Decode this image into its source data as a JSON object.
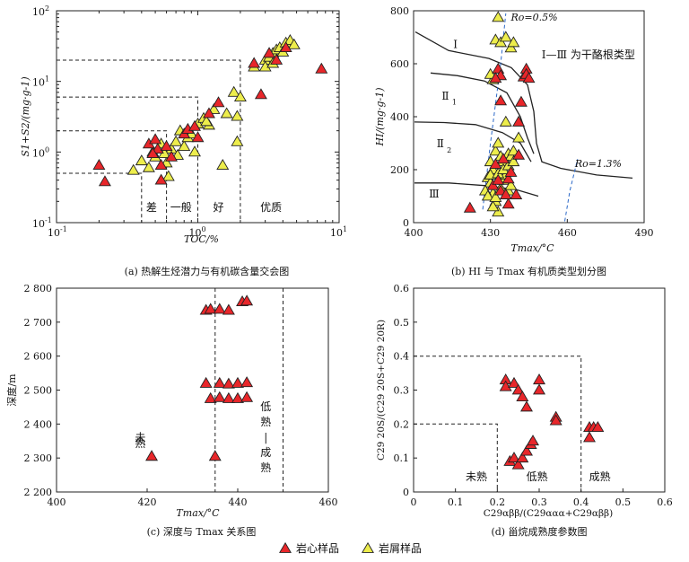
{
  "colors": {
    "core": "#e8262a",
    "cutting": "#eded4c",
    "marker_stroke": "#222222",
    "ro_line": "#2a68c8"
  },
  "legend": {
    "core_label": "岩心样品",
    "cutting_label": "岩屑样品"
  },
  "chart_data": [
    {
      "id": "a",
      "type": "scatter",
      "xscale": "log",
      "yscale": "log",
      "caption": "(a) 热解生烃潜力与有机碳含量交会图",
      "xlabel": "TOC/%",
      "ylabel": "S1+S2/(mg·g-1)",
      "xlim": [
        0.1,
        10
      ],
      "ylim": [
        0.1,
        100
      ],
      "xtick_labels": [
        "10^-1",
        "10^0",
        "10^1"
      ],
      "ytick_labels": [
        "10^-1",
        "10^0",
        "10^1",
        "10^2"
      ],
      "zones": [
        "差",
        "一般",
        "好",
        "优质"
      ],
      "series": [
        {
          "name": "岩心样品",
          "points": [
            [
              0.2,
              0.65
            ],
            [
              0.22,
              0.38
            ],
            [
              0.45,
              1.3
            ],
            [
              0.5,
              1.5
            ],
            [
              0.52,
              1.1
            ],
            [
              0.55,
              0.4
            ],
            [
              0.6,
              1.2
            ],
            [
              0.65,
              0.85
            ],
            [
              0.55,
              0.65
            ],
            [
              0.8,
              1.8
            ],
            [
              0.85,
              2.1
            ],
            [
              1.0,
              1.6
            ],
            [
              1.2,
              3.5
            ],
            [
              1.4,
              5.0
            ],
            [
              2.5,
              18.0
            ],
            [
              2.8,
              6.5
            ],
            [
              3.2,
              25.0
            ],
            [
              3.6,
              20.0
            ],
            [
              4.2,
              30.0
            ],
            [
              7.5,
              15.0
            ],
            [
              0.95,
              2.3
            ],
            [
              0.48,
              0.95
            ]
          ]
        },
        {
          "name": "岩屑样品",
          "points": [
            [
              0.35,
              0.55
            ],
            [
              0.4,
              0.75
            ],
            [
              0.45,
              0.6
            ],
            [
              0.48,
              1.0
            ],
            [
              0.5,
              0.85
            ],
            [
              0.55,
              1.3
            ],
            [
              0.6,
              0.7
            ],
            [
              0.62,
              0.45
            ],
            [
              0.65,
              1.1
            ],
            [
              0.7,
              1.4
            ],
            [
              0.72,
              0.9
            ],
            [
              0.8,
              1.2
            ],
            [
              0.85,
              1.6
            ],
            [
              0.9,
              1.8
            ],
            [
              0.95,
              1.0
            ],
            [
              1.0,
              2.5
            ],
            [
              1.1,
              3.0
            ],
            [
              1.2,
              2.4
            ],
            [
              1.3,
              4.0
            ],
            [
              1.5,
              0.65
            ],
            [
              1.6,
              3.5
            ],
            [
              1.8,
              7.0
            ],
            [
              1.9,
              3.2
            ],
            [
              2.0,
              6.0
            ],
            [
              1.9,
              1.4
            ],
            [
              2.5,
              16.0
            ],
            [
              3.0,
              20.0
            ],
            [
              3.2,
              22.0
            ],
            [
              3.4,
              25.0
            ],
            [
              3.6,
              28.0
            ],
            [
              3.8,
              30.0
            ],
            [
              4.2,
              35.0
            ],
            [
              4.5,
              38.0
            ],
            [
              4.8,
              33.0
            ],
            [
              3.0,
              16.0
            ],
            [
              4.0,
              26.0
            ],
            [
              3.4,
              18.0
            ],
            [
              0.75,
              2.0
            ],
            [
              1.15,
              2.7
            ],
            [
              0.58,
              0.95
            ]
          ]
        }
      ]
    },
    {
      "id": "b",
      "type": "scatter",
      "caption": "(b) HI 与 Tmax 有机质类型划分图",
      "xlabel": "Tmax/°C",
      "ylabel": "HI/(mg·g-1)",
      "xlim": [
        400,
        490
      ],
      "ylim": [
        0,
        800
      ],
      "xticks": [
        400,
        430,
        460,
        490
      ],
      "yticks": [
        0,
        200,
        400,
        600,
        800
      ],
      "annotations": {
        "type1": "Ⅰ",
        "type2_1": "Ⅱ",
        "type2_1_sub": "1",
        "type2_2": "Ⅱ",
        "type2_2_sub": "2",
        "type3": "Ⅲ",
        "kerogen_note": "Ⅰ—Ⅲ 为干酪根类型",
        "ro_05": "Ro=0.5%",
        "ro_13": "Ro=1.3%"
      },
      "series": [
        {
          "name": "岩心样品",
          "points": [
            [
              422,
              55
            ],
            [
              431,
              140
            ],
            [
              432,
              220
            ],
            [
              433,
              160
            ],
            [
              434,
              120
            ],
            [
              435,
              240
            ],
            [
              433,
              580
            ],
            [
              434,
              555
            ],
            [
              434,
              460
            ],
            [
              437,
              165
            ],
            [
              440,
              105
            ],
            [
              441,
              255
            ],
            [
              441,
              380
            ],
            [
              442,
              455
            ],
            [
              443,
              550
            ],
            [
              444,
              580
            ],
            [
              444,
              560
            ],
            [
              445,
              545
            ],
            [
              432,
              545
            ],
            [
              437,
              70
            ],
            [
              438,
              190
            ],
            [
              436,
              105
            ]
          ]
        },
        {
          "name": "岩屑样品",
          "points": [
            [
              433,
              775
            ],
            [
              432,
              690
            ],
            [
              434,
              680
            ],
            [
              436,
              700
            ],
            [
              438,
              660
            ],
            [
              439,
              680
            ],
            [
              431,
              540
            ],
            [
              430,
              560
            ],
            [
              430,
              230
            ],
            [
              431,
              200
            ],
            [
              432,
              270
            ],
            [
              433,
              300
            ],
            [
              434,
              250
            ],
            [
              435,
              230
            ],
            [
              437,
              260
            ],
            [
              438,
              250
            ],
            [
              439,
              270
            ],
            [
              436,
              380
            ],
            [
              441,
              320
            ],
            [
              429,
              170
            ],
            [
              430,
              150
            ],
            [
              431,
              110
            ],
            [
              432,
              80
            ],
            [
              433,
              40
            ],
            [
              434,
              130
            ],
            [
              435,
              160
            ],
            [
              436,
              180
            ],
            [
              437,
              120
            ],
            [
              438,
              140
            ],
            [
              428,
              120
            ],
            [
              429,
              100
            ],
            [
              431,
              60
            ],
            [
              432,
              95
            ],
            [
              430,
              180
            ],
            [
              433,
              185
            ],
            [
              435,
              200
            ],
            [
              437,
              215
            ],
            [
              439,
              230
            ]
          ]
        }
      ]
    },
    {
      "id": "c",
      "type": "scatter",
      "caption": "(c) 深度与 Tmax 关系图",
      "xlabel": "Tmax/°C",
      "ylabel": "深度/m",
      "xlim": [
        400,
        460
      ],
      "ylim": [
        2200,
        2800
      ],
      "xticks": [
        400,
        420,
        440,
        460
      ],
      "ytick_labels": [
        "2 200",
        "2 300",
        "2 400",
        "2 500",
        "2 600",
        "2 700",
        "2 800"
      ],
      "annotations": {
        "immature": "未熟",
        "low_mature": "低熟—成熟"
      },
      "series": [
        {
          "name": "岩心样品",
          "points": [
            [
              421,
              2305
            ],
            [
              435,
              2305
            ],
            [
              433,
              2735
            ],
            [
              434,
              2738
            ],
            [
              436,
              2738
            ],
            [
              438,
              2735
            ],
            [
              441,
              2760
            ],
            [
              442,
              2762
            ],
            [
              433,
              2520
            ],
            [
              434,
              2475
            ],
            [
              436,
              2520
            ],
            [
              436,
              2478
            ],
            [
              438,
              2518
            ],
            [
              438,
              2475
            ],
            [
              440,
              2520
            ],
            [
              440,
              2475
            ],
            [
              442,
              2522
            ],
            [
              442,
              2478
            ]
          ]
        }
      ]
    },
    {
      "id": "d",
      "type": "scatter",
      "caption": "(d) 甾烷成熟度参数图",
      "xlabel": "C29αββ/(C29ααα+C29αββ)",
      "ylabel": "C29 20S/(C29 20S+C29 20R)",
      "xlim": [
        0,
        0.6
      ],
      "ylim": [
        0,
        0.6
      ],
      "xticks": [
        0,
        0.1,
        0.2,
        0.3,
        0.4,
        0.5,
        0.6
      ],
      "yticks": [
        0,
        0.1,
        0.2,
        0.3,
        0.4,
        0.5,
        0.6
      ],
      "annotations": {
        "immature": "未熟",
        "low_mature": "低熟",
        "mature": "成熟"
      },
      "series": [
        {
          "name": "岩心样品",
          "points": [
            [
              0.22,
              0.33
            ],
            [
              0.22,
              0.31
            ],
            [
              0.24,
              0.32
            ],
            [
              0.25,
              0.3
            ],
            [
              0.26,
              0.28
            ],
            [
              0.27,
              0.25
            ],
            [
              0.3,
              0.33
            ],
            [
              0.3,
              0.3
            ],
            [
              0.23,
              0.09
            ],
            [
              0.24,
              0.1
            ],
            [
              0.25,
              0.08
            ],
            [
              0.26,
              0.1
            ],
            [
              0.27,
              0.12
            ],
            [
              0.28,
              0.14
            ],
            [
              0.285,
              0.15
            ],
            [
              0.34,
              0.22
            ],
            [
              0.34,
              0.21
            ],
            [
              0.42,
              0.19
            ],
            [
              0.42,
              0.16
            ],
            [
              0.43,
              0.19
            ],
            [
              0.44,
              0.19
            ]
          ]
        }
      ]
    }
  ]
}
